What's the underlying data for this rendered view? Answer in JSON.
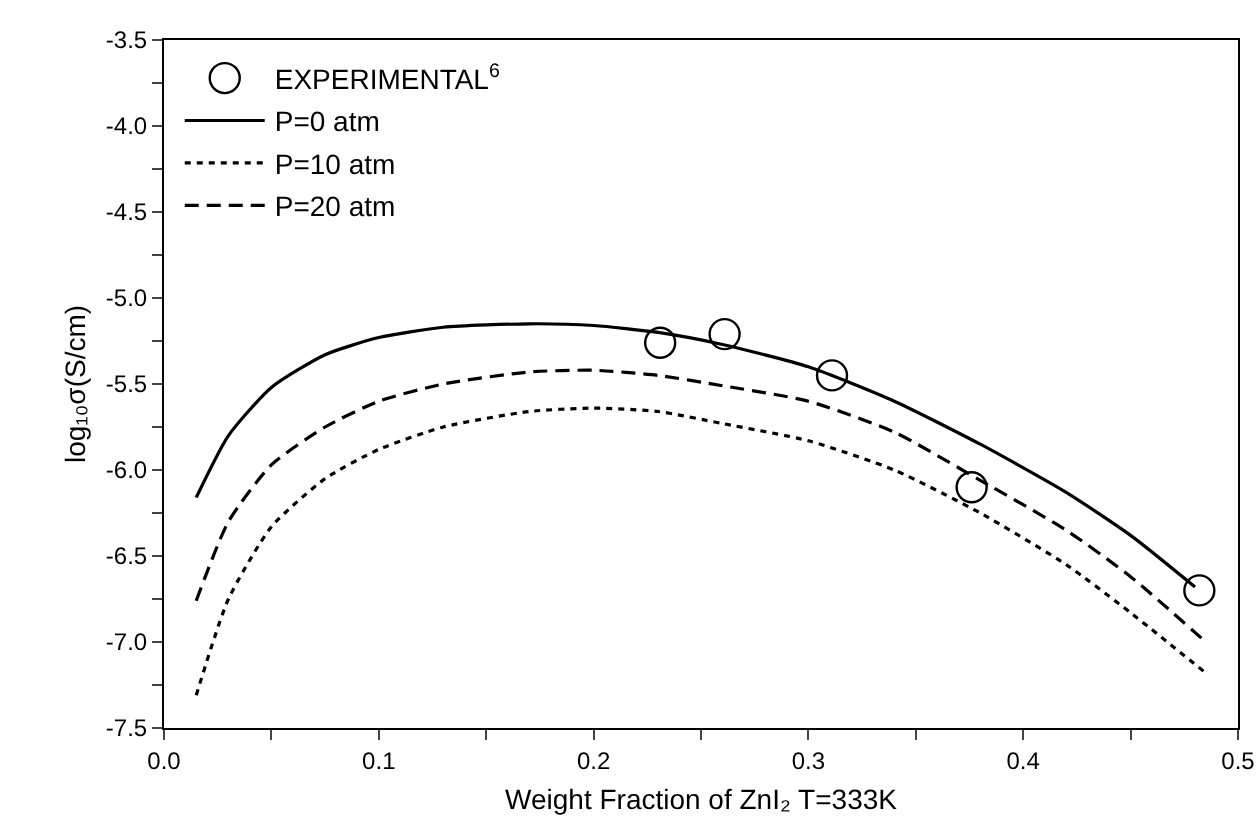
{
  "chart_data": {
    "type": "line",
    "xlabel": "Weight Fraction of ZnI₂ T=333K",
    "ylabel": "log₁₀σ(S/cm)",
    "xlim": [
      0,
      0.5
    ],
    "ylim": [
      -7.5,
      -3.5
    ],
    "xticks": [
      {
        "value": 0,
        "label": "0.0"
      },
      {
        "value": 0.05,
        "label": null
      },
      {
        "value": 0.1,
        "label": "0.1"
      },
      {
        "value": 0.15,
        "label": null
      },
      {
        "value": 0.2,
        "label": "0.2"
      },
      {
        "value": 0.25,
        "label": null
      },
      {
        "value": 0.3,
        "label": "0.3"
      },
      {
        "value": 0.35,
        "label": null
      },
      {
        "value": 0.4,
        "label": "0.4"
      },
      {
        "value": 0.45,
        "label": null
      },
      {
        "value": 0.5,
        "label": "0.5"
      }
    ],
    "yticks": [
      {
        "value": -7.5,
        "label": "-7.5"
      },
      {
        "value": -7.25,
        "label": null
      },
      {
        "value": -7,
        "label": "-7.0"
      },
      {
        "value": -6.75,
        "label": null
      },
      {
        "value": -6.5,
        "label": "-6.5"
      },
      {
        "value": -6.25,
        "label": null
      },
      {
        "value": -6,
        "label": "-6.0"
      },
      {
        "value": -5.75,
        "label": null
      },
      {
        "value": -5.5,
        "label": "-5.5"
      },
      {
        "value": -5.25,
        "label": null
      },
      {
        "value": -5,
        "label": "-5.0"
      },
      {
        "value": -4.75,
        "label": null
      },
      {
        "value": -4.5,
        "label": "-4.5"
      },
      {
        "value": -4.25,
        "label": null
      },
      {
        "value": -4,
        "label": "-4.0"
      },
      {
        "value": -3.75,
        "label": null
      },
      {
        "value": -3.5,
        "label": "-3.5"
      }
    ],
    "grid": false,
    "legend": "top left",
    "series": [
      {
        "name": "EXPERIMENTAL$^{6}$",
        "type": "scatter",
        "marker": "circle",
        "color": "#000000",
        "x": [
          0.231,
          0.261,
          0.311,
          0.376,
          0.482
        ],
        "values": [
          -5.26,
          -5.21,
          -5.45,
          -6.1,
          -6.7
        ]
      },
      {
        "name": "P=0 atm",
        "type": "line",
        "line_style": "solid",
        "color": "#000000",
        "x": [
          0.015,
          0.03,
          0.05,
          0.075,
          0.1,
          0.13,
          0.17,
          0.2,
          0.23,
          0.26,
          0.3,
          0.34,
          0.38,
          0.42,
          0.45,
          0.48
        ],
        "values": [
          -6.16,
          -5.8,
          -5.52,
          -5.33,
          -5.23,
          -5.17,
          -5.15,
          -5.16,
          -5.2,
          -5.27,
          -5.4,
          -5.6,
          -5.85,
          -6.13,
          -6.38,
          -6.68
        ]
      },
      {
        "name": "P=10 atm",
        "type": "line",
        "line_style": "dotted",
        "color": "#000000",
        "x": [
          0.015,
          0.03,
          0.05,
          0.075,
          0.1,
          0.13,
          0.17,
          0.2,
          0.23,
          0.26,
          0.3,
          0.34,
          0.38,
          0.42,
          0.45,
          0.484
        ],
        "values": [
          -7.31,
          -6.75,
          -6.33,
          -6.05,
          -5.88,
          -5.75,
          -5.66,
          -5.64,
          -5.66,
          -5.73,
          -5.83,
          -6.0,
          -6.25,
          -6.55,
          -6.83,
          -7.17
        ]
      },
      {
        "name": "P=20 atm",
        "type": "line",
        "line_style": "dashed",
        "color": "#000000",
        "x": [
          0.015,
          0.03,
          0.05,
          0.075,
          0.1,
          0.13,
          0.17,
          0.2,
          0.23,
          0.26,
          0.3,
          0.34,
          0.38,
          0.42,
          0.45,
          0.485
        ],
        "values": [
          -6.76,
          -6.3,
          -5.97,
          -5.75,
          -5.6,
          -5.5,
          -5.43,
          -5.42,
          -5.45,
          -5.51,
          -5.6,
          -5.78,
          -6.06,
          -6.35,
          -6.62,
          -7.0
        ]
      }
    ]
  }
}
